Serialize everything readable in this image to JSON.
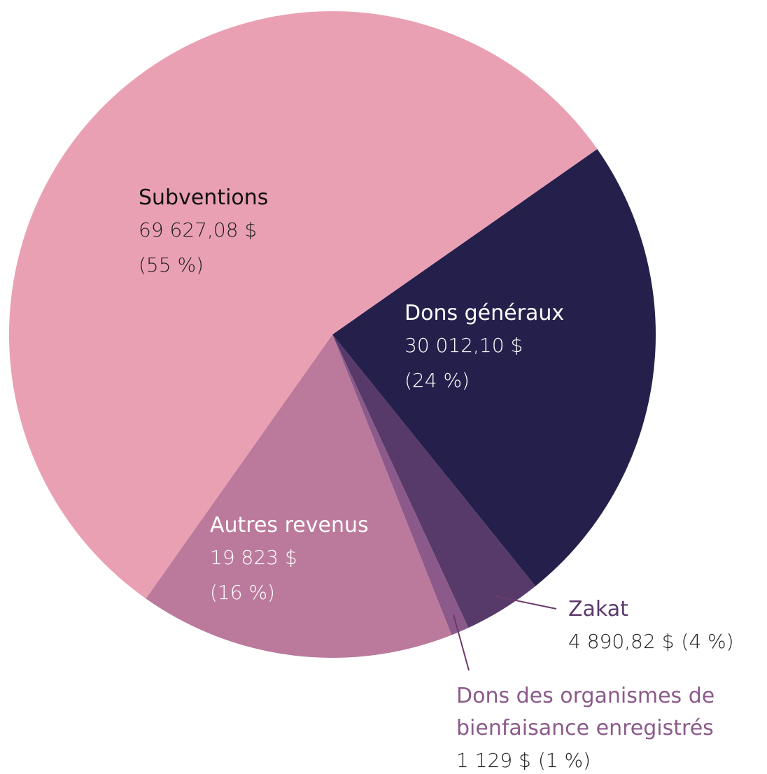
{
  "chart_data": {
    "type": "pie",
    "categories": [
      "Dons généraux",
      "Zakat",
      "Dons des organismes de bienfaisance enregistrés",
      "Autres revenus",
      "Subventions"
    ],
    "values": [
      30012.1,
      4890.82,
      1129,
      19823,
      69627.08
    ],
    "value_labels": [
      "30 012,10 $",
      "4 890,82 $",
      "1 129 $",
      "19 823 $",
      "69 627,08 $"
    ],
    "percent_labels": [
      "(24 %)",
      "(4 %)",
      "(1 %)",
      "(16 %)",
      "(55 %)"
    ],
    "colors": [
      "#25204b",
      "#573a6a",
      "#8b5a8a",
      "#bb7a9b",
      "#eaa0b3"
    ]
  }
}
